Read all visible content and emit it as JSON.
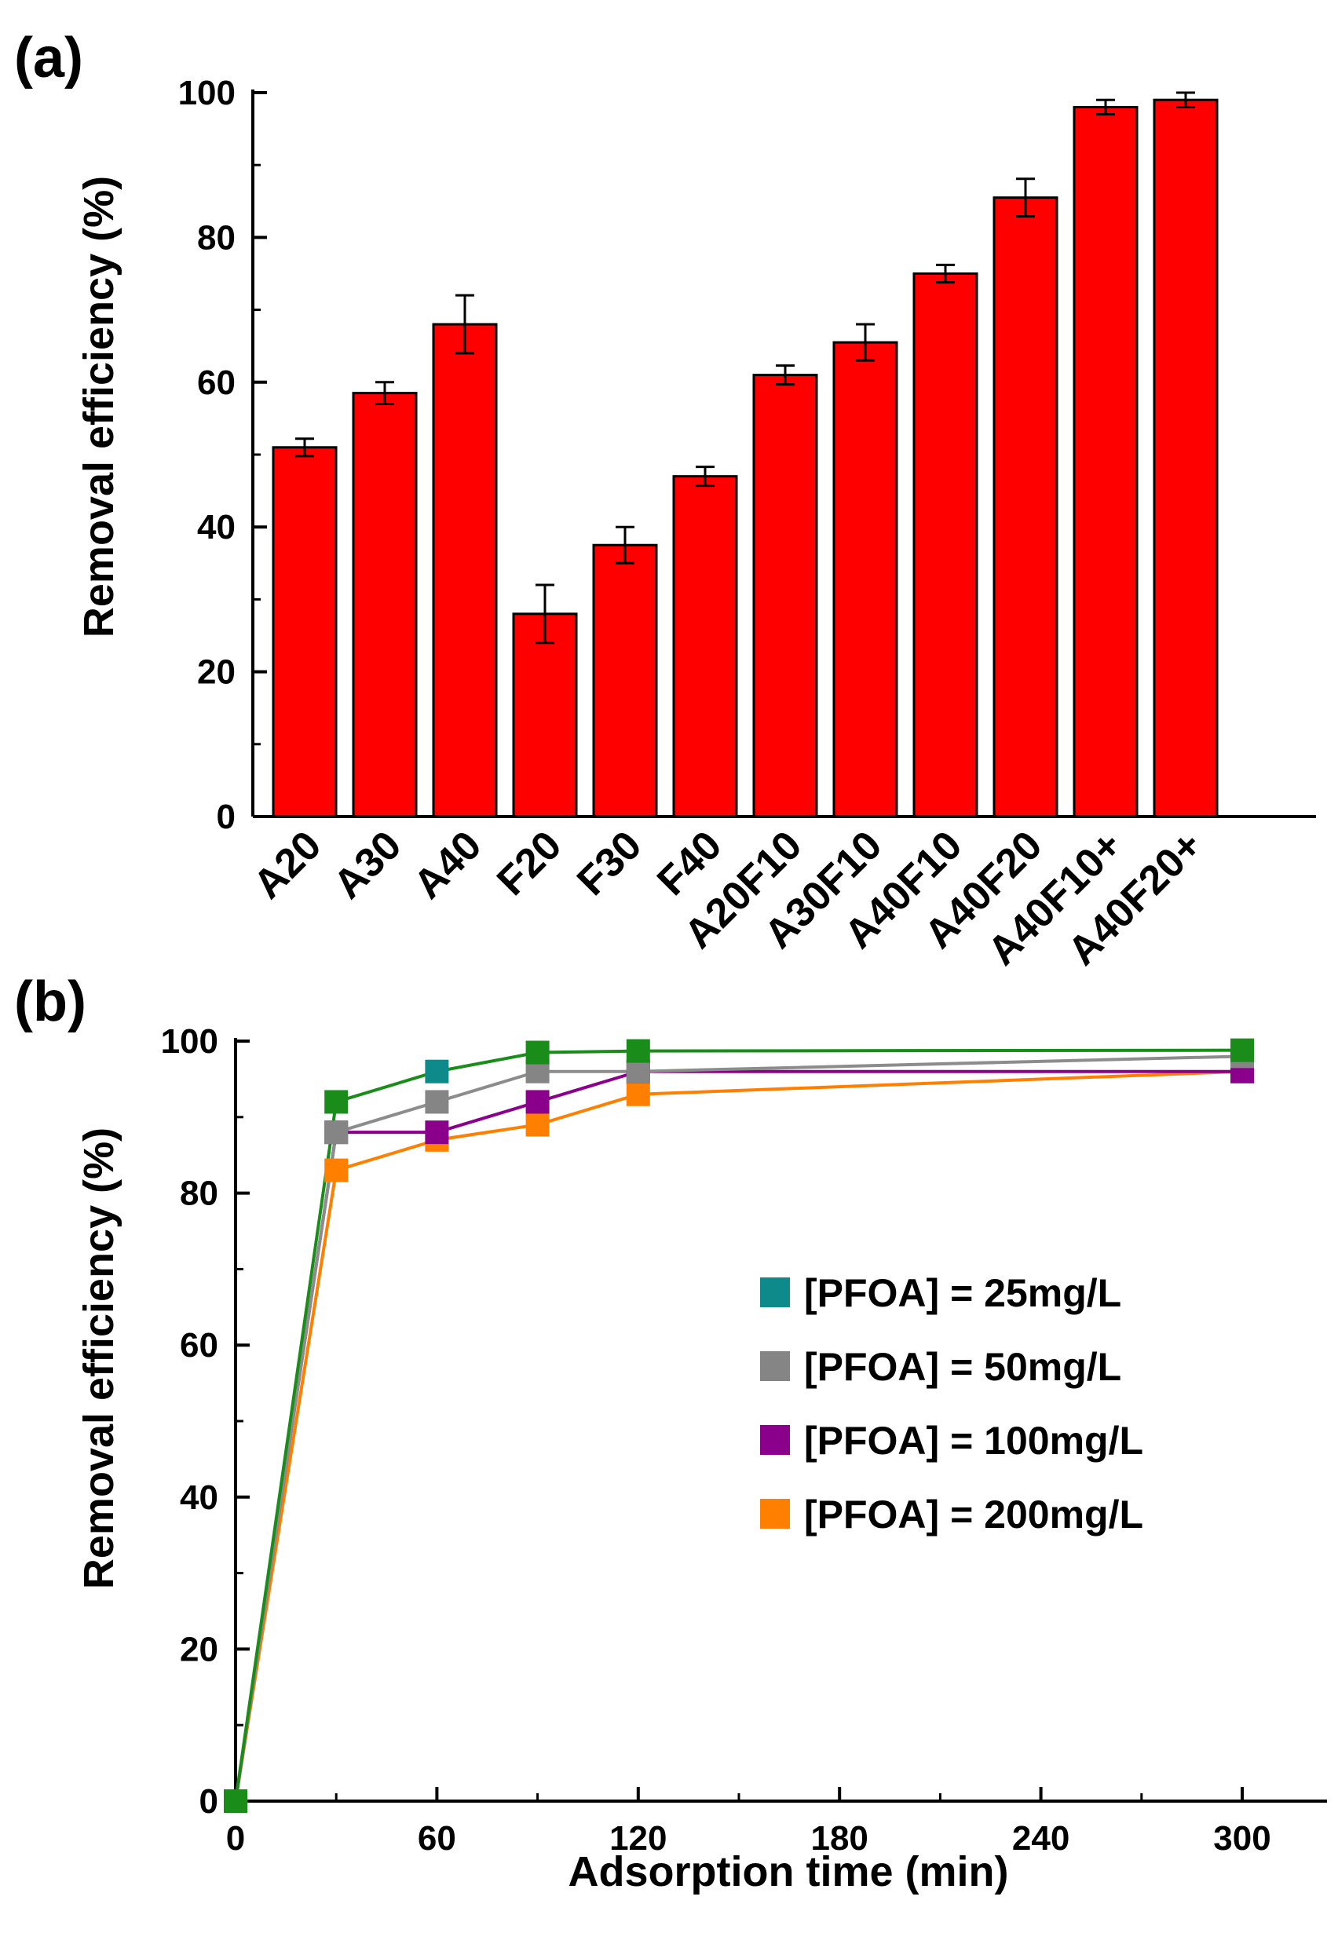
{
  "chart_data": [
    {
      "panel": "(a)",
      "type": "bar",
      "ylabel": "Removal efficiency (%)",
      "xlabel": "",
      "ylim": [
        0,
        100
      ],
      "yticks": [
        0,
        20,
        40,
        60,
        80,
        100
      ],
      "categories": [
        "A20",
        "A30",
        "A40",
        "F20",
        "F30",
        "F40",
        "A20F10",
        "A30F10",
        "A40F10",
        "A40F20",
        "A40F10+",
        "A40F20+"
      ],
      "values": [
        51,
        58.5,
        68,
        28,
        37.5,
        47,
        61,
        65.5,
        75,
        85.5,
        98,
        99
      ],
      "errors": [
        1.2,
        1.5,
        4,
        4,
        2.5,
        1.3,
        1.3,
        2.5,
        1.2,
        2.6,
        1,
        1
      ],
      "bar_color": "#ff0000"
    },
    {
      "panel": "(b)",
      "type": "line",
      "xlabel": "Adsorption time (min)",
      "ylabel": "Removal efficiency (%)",
      "xlim": [
        0,
        330
      ],
      "ylim": [
        0,
        100
      ],
      "xticks": [
        0,
        60,
        120,
        180,
        240,
        300
      ],
      "yticks": [
        0,
        20,
        40,
        60,
        80,
        100
      ],
      "x": [
        0,
        30,
        60,
        90,
        120,
        300
      ],
      "series": [
        {
          "name": "[PFOA] = 25mg/L",
          "marker_color": "#0f8a8a",
          "line_color": "#1a8c1a",
          "values": [
            0,
            92,
            96,
            98.5,
            98.7,
            98.8
          ]
        },
        {
          "name": "[PFOA] = 50mg/L",
          "marker_color": "#858585",
          "line_color": "#8c8c8c",
          "values": [
            0,
            88,
            92,
            96,
            96,
            98
          ]
        },
        {
          "name": "[PFOA] = 100mg/L",
          "marker_color": "#8b008b",
          "line_color": "#8b008b",
          "values": [
            0,
            88,
            88,
            92,
            96,
            96
          ]
        },
        {
          "name": "[PFOA] = 200mg/L",
          "marker_color": "#ff8000",
          "line_color": "#ff8000",
          "values": [
            0,
            83,
            87,
            89,
            93,
            96
          ]
        }
      ],
      "top_marker_color": "#1a8c1a"
    }
  ]
}
